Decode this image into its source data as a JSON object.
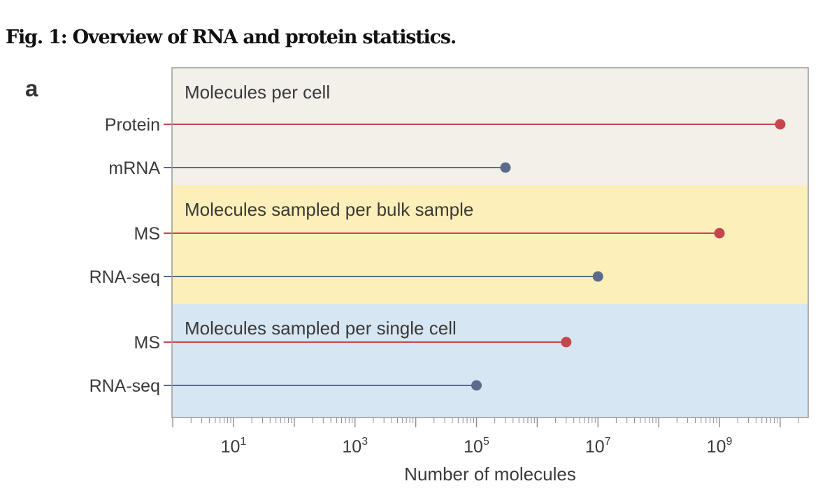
{
  "figure": {
    "title": "Fig. 1: Overview of RNA and protein statistics.",
    "panel_label": "a"
  },
  "chart_data": {
    "type": "dot",
    "scale": "log10",
    "xlabel": "Number of molecules",
    "xlim": [
      1,
      30000000000
    ],
    "xticks": [
      {
        "value": 10,
        "base": "10",
        "exp": "1"
      },
      {
        "value": 1000,
        "base": "10",
        "exp": "3"
      },
      {
        "value": 100000,
        "base": "10",
        "exp": "5"
      },
      {
        "value": 10000000,
        "base": "10",
        "exp": "7"
      },
      {
        "value": 1000000000,
        "base": "10",
        "exp": "9"
      }
    ],
    "groups": [
      {
        "label": "Molecules per cell",
        "color": "#f2f0e9",
        "rows": [
          {
            "label": "Protein",
            "value": 10000000000,
            "kind": "protein"
          },
          {
            "label": "mRNA",
            "value": 300000,
            "kind": "rna"
          }
        ]
      },
      {
        "label": "Molecules sampled per bulk sample",
        "color": "#fcefb9",
        "rows": [
          {
            "label": "MS",
            "value": 1000000000,
            "kind": "protein"
          },
          {
            "label": "RNA-seq",
            "value": 10000000,
            "kind": "rna"
          }
        ]
      },
      {
        "label": "Molecules sampled per single cell",
        "color": "#d6e6f2",
        "rows": [
          {
            "label": "MS",
            "value": 3000000,
            "kind": "protein"
          },
          {
            "label": "RNA-seq",
            "value": 100000,
            "kind": "rna"
          }
        ]
      }
    ],
    "series_colors": {
      "protein": "#c5474d",
      "rna": "#5a6b8c"
    }
  }
}
